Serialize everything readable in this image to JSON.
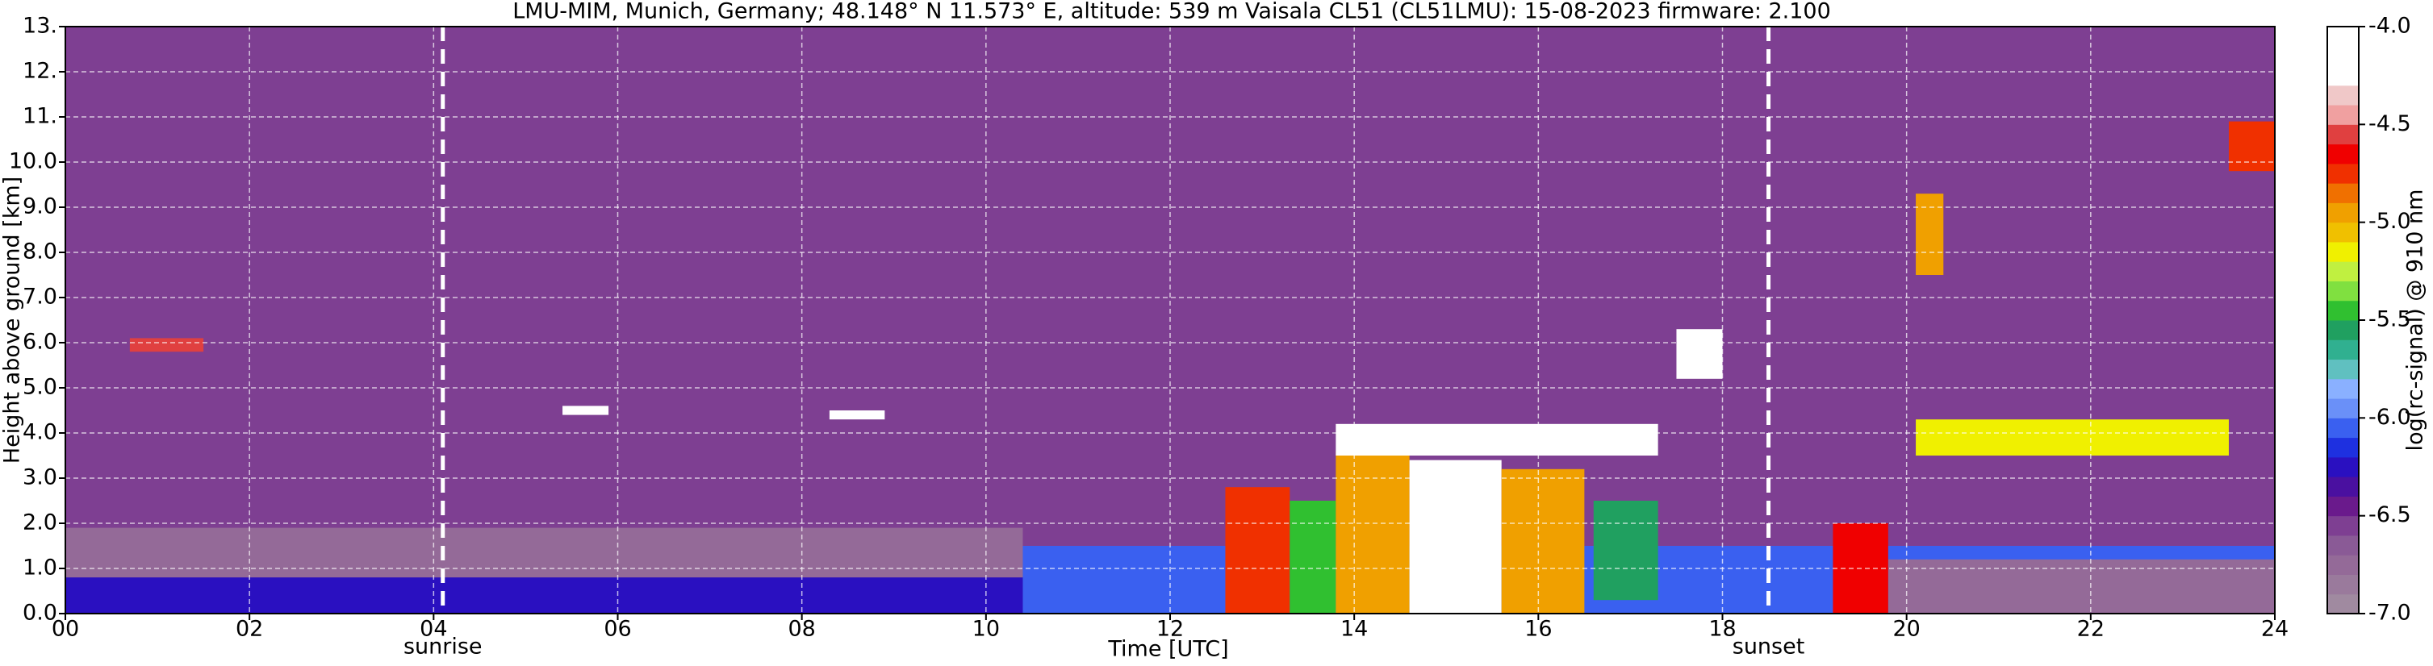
{
  "chart_data": {
    "type": "heatmap",
    "title": "LMU-MIM, Munich, Germany; 48.148° N 11.573° E, altitude: 539 m    Vaisala CL51 (CL51LMU): 15-08-2023    firmware: 2.100",
    "x_label": "Time [UTC]",
    "y_label": "Height above ground [km]",
    "colorbar_label": "log(rc-signal) @ 910 nm",
    "xlim": [
      0,
      24
    ],
    "xticks": [
      {
        "value": 0,
        "label": "00"
      },
      {
        "value": 2,
        "label": "02"
      },
      {
        "value": 4,
        "label": "04"
      },
      {
        "value": 6,
        "label": "06"
      },
      {
        "value": 8,
        "label": "08"
      },
      10,
      12,
      14,
      16,
      18,
      20,
      22,
      24
    ],
    "ylim": [
      0,
      13
    ],
    "yticks": [
      {
        "value": 0,
        "label": "0.0"
      },
      {
        "value": 1,
        "label": "1.0"
      },
      {
        "value": 2,
        "label": "2.0"
      },
      {
        "value": 3,
        "label": "3.0"
      },
      {
        "value": 4,
        "label": "4.0"
      },
      {
        "value": 5,
        "label": "5.0"
      },
      {
        "value": 6,
        "label": "6.0"
      },
      {
        "value": 7,
        "label": "7.0"
      },
      {
        "value": 8,
        "label": "8.0"
      },
      {
        "value": 9,
        "label": "9.0"
      },
      {
        "value": 10,
        "label": "10.0"
      },
      {
        "value": 11,
        "label": "11."
      },
      {
        "value": 12,
        "label": "12."
      },
      {
        "value": 13,
        "label": "13."
      }
    ],
    "clim": [
      -7,
      -4
    ],
    "cticks": [
      {
        "value": -7,
        "label": "-7.0"
      },
      {
        "value": -6.5,
        "label": "-6.5"
      },
      {
        "value": -6,
        "label": "-6.0"
      },
      {
        "value": -5.5,
        "label": "-5.5"
      },
      {
        "value": -5,
        "label": "-5.0"
      },
      {
        "value": -4.5,
        "label": "-4.5"
      },
      {
        "value": -4,
        "label": "-4.0"
      }
    ],
    "colormap": [
      "#a08aa0",
      "#9a7a9c",
      "#946a98",
      "#8a5a96",
      "#7e3f92",
      "#6a1a8c",
      "#4a10a0",
      "#2a10c0",
      "#1e30e0",
      "#3a60f0",
      "#6a90f8",
      "#8ab0ff",
      "#60c0c0",
      "#30b090",
      "#20a060",
      "#30c030",
      "#80e040",
      "#c0f040",
      "#f0f000",
      "#f0c000",
      "#f0a000",
      "#f07000",
      "#f03000",
      "#f00000",
      "#e04040",
      "#f0a0a0",
      "#f0c8c8",
      "#ffffff",
      "#ffffff",
      "#ffffff"
    ],
    "grid": true,
    "markers": [
      {
        "label": "sunrise",
        "x": 4.1
      },
      {
        "label": "sunset",
        "x": 18.5
      }
    ],
    "cells": [
      {
        "x": [
          0,
          24
        ],
        "y": [
          0,
          13
        ],
        "value": -6.6
      },
      {
        "x": [
          0,
          10.4
        ],
        "y": [
          0.8,
          1.9
        ],
        "value": -6.7
      },
      {
        "x": [
          0,
          10.4
        ],
        "y": [
          0,
          0.8
        ],
        "value": -6.2
      },
      {
        "x": [
          10.4,
          24
        ],
        "y": [
          0,
          1.5
        ],
        "value": -6.1
      },
      {
        "x": [
          19.8,
          24
        ],
        "y": [
          0,
          1.2
        ],
        "value": -6.8
      },
      {
        "x": [
          0.7,
          1.5
        ],
        "y": [
          5.8,
          6.1
        ],
        "value": -4.6
      },
      {
        "x": [
          5.4,
          5.9
        ],
        "y": [
          4.4,
          4.6
        ],
        "value": -4.1
      },
      {
        "x": [
          8.3,
          8.9
        ],
        "y": [
          4.3,
          4.5
        ],
        "value": -4.1
      },
      {
        "x": [
          12.6,
          13.3
        ],
        "y": [
          0,
          2.8
        ],
        "value": -4.8
      },
      {
        "x": [
          13.3,
          13.8
        ],
        "y": [
          0,
          2.5
        ],
        "value": -5.4
      },
      {
        "x": [
          13.8,
          14.6
        ],
        "y": [
          0,
          3.6
        ],
        "value": -4.9
      },
      {
        "x": [
          14.6,
          15.6
        ],
        "y": [
          0,
          3.4
        ],
        "value": -4.1
      },
      {
        "x": [
          15.6,
          16.5
        ],
        "y": [
          0,
          3.2
        ],
        "value": -4.9
      },
      {
        "x": [
          13.8,
          17.3
        ],
        "y": [
          3.5,
          4.2
        ],
        "value": -4.2
      },
      {
        "x": [
          16.6,
          17.3
        ],
        "y": [
          0.3,
          2.5
        ],
        "value": -5.6
      },
      {
        "x": [
          17.5,
          18.0
        ],
        "y": [
          5.2,
          6.3
        ],
        "value": -4.3
      },
      {
        "x": [
          19.2,
          19.8
        ],
        "y": [
          0,
          2.0
        ],
        "value": -4.7
      },
      {
        "x": [
          20.1,
          23.5
        ],
        "y": [
          3.5,
          4.3
        ],
        "value": -5.2
      },
      {
        "x": [
          20.1,
          20.4
        ],
        "y": [
          7.5,
          9.3
        ],
        "value": -5.0
      },
      {
        "x": [
          23.5,
          24
        ],
        "y": [
          9.8,
          10.9
        ],
        "value": -4.8
      }
    ]
  }
}
